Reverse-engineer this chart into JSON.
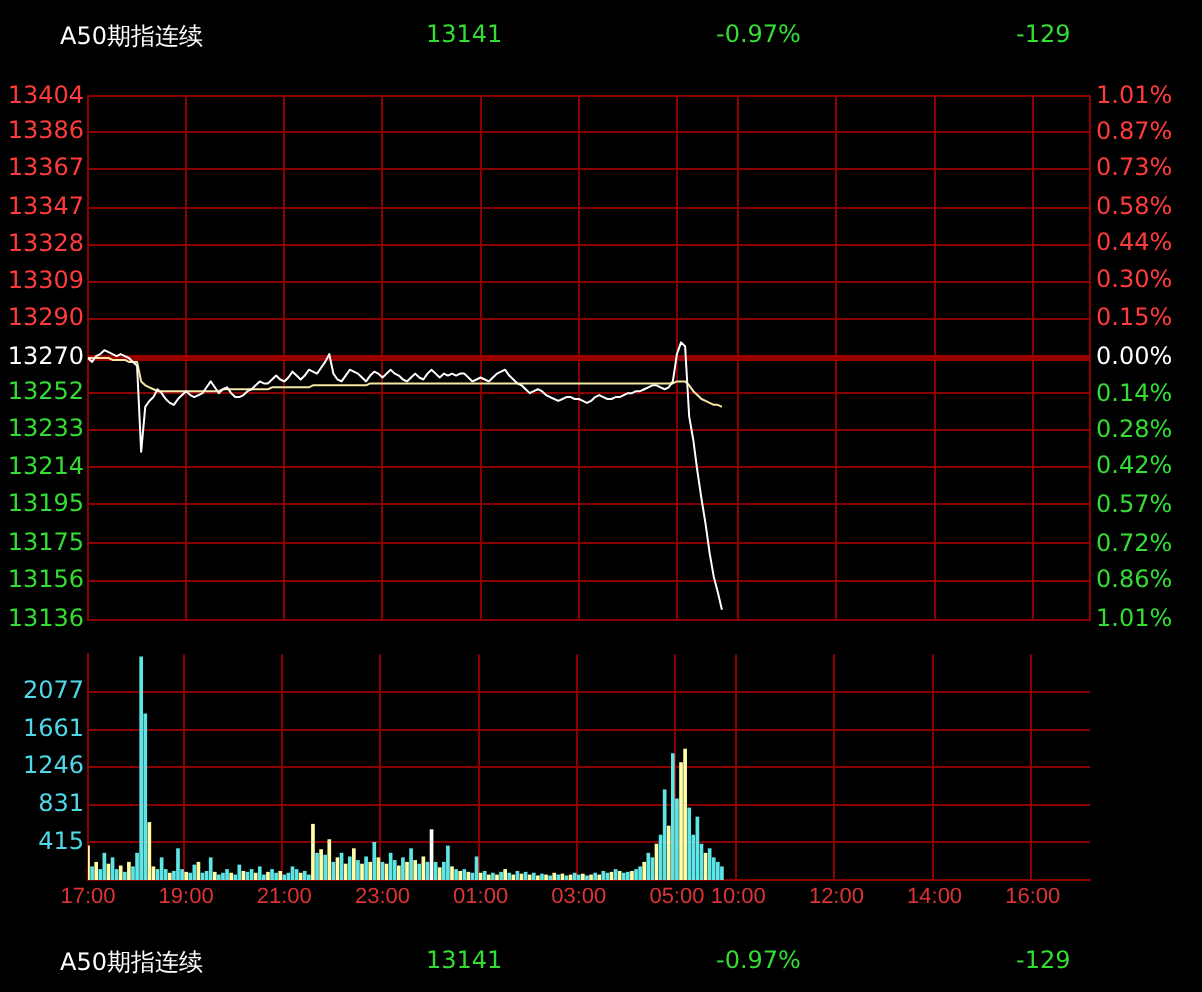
{
  "chart_data": [
    {
      "type": "line",
      "annotations": [
        "A50期指连续",
        "13141",
        "-0.97%",
        "-129"
      ],
      "categories": [
        null,
        null,
        null,
        null,
        null,
        null,
        null,
        null,
        null,
        null,
        null,
        null,
        null,
        null,
        null,
        null,
        null,
        null,
        null,
        null,
        null,
        null,
        null,
        null,
        null,
        null,
        null,
        null,
        null,
        null,
        null,
        null,
        null,
        null,
        null,
        null,
        null,
        null,
        null,
        null,
        null,
        null,
        null,
        null,
        null,
        null,
        null,
        null,
        null,
        null,
        null,
        null,
        null,
        null,
        null,
        null,
        null,
        null,
        null,
        null,
        null,
        null,
        null,
        null,
        null,
        null,
        null,
        null,
        null,
        null,
        null,
        null,
        null,
        null,
        null,
        null,
        null,
        null,
        null,
        null,
        null,
        null,
        null,
        null,
        null,
        null,
        null,
        null,
        null,
        null,
        null,
        null,
        null,
        null,
        null,
        null,
        null,
        null,
        null,
        null,
        null,
        null,
        null,
        null,
        null,
        null,
        null,
        null,
        null,
        null,
        null,
        null,
        null,
        null,
        null,
        null,
        null,
        null,
        null,
        null,
        null,
        null,
        null,
        null,
        null,
        null,
        null,
        null,
        null,
        null,
        null,
        null,
        null,
        null,
        null,
        null,
        null,
        null,
        null,
        null,
        null,
        null,
        null,
        null,
        null,
        null,
        null,
        null,
        null,
        null,
        null,
        null,
        null,
        null,
        null,
        null,
        null,
        null,
        null,
        null,
        null,
        null,
        null,
        null,
        null,
        null,
        null,
        null,
        null,
        null,
        null,
        null,
        null,
        null,
        null,
        null,
        null,
        null,
        null,
        null,
        null,
        null,
        null,
        null,
        null,
        null,
        null,
        null,
        null,
        null,
        null,
        null,
        null,
        null,
        null,
        null,
        null,
        null,
        null,
        null,
        null,
        null,
        null,
        null,
        null,
        null,
        null,
        null,
        null,
        null,
        null,
        null,
        null,
        null,
        null,
        null,
        null,
        null,
        null,
        null,
        null,
        null,
        null,
        null,
        null,
        null,
        null,
        null,
        null,
        null,
        null,
        null,
        null,
        null,
        null,
        null,
        null,
        null,
        null,
        null,
        null,
        null,
        null,
        null,
        null,
        null
      ],
      "series": [
        {
          "color": "#ffffff",
          "values": [
            13270,
            13268,
            13271,
            13272,
            13274,
            13273,
            13272,
            13271,
            13272,
            13271,
            13270,
            13268,
            13266,
            13222,
            13245,
            13248,
            13250,
            13254,
            13252,
            13249,
            13247,
            13246,
            13249,
            13251,
            13253,
            13251,
            13250,
            13251,
            13252,
            13255,
            13258,
            13255,
            13252,
            13254,
            13255,
            13252,
            13250,
            13250,
            13251,
            13253,
            13254,
            13256,
            13258,
            13257,
            13257,
            13259,
            13261,
            13259,
            13258,
            13260,
            13263,
            13261,
            13259,
            13261,
            13264,
            13263,
            13262,
            13265,
            13268,
            13272,
            13262,
            13259,
            13258,
            13261,
            13264,
            13263,
            13262,
            13260,
            13258,
            13261,
            13263,
            13262,
            13260,
            13262,
            13264,
            13262,
            13261,
            13259,
            13258,
            13260,
            13262,
            13260,
            13259,
            13262,
            13264,
            13262,
            13260,
            13262,
            13261,
            13262,
            13261,
            13262,
            13262,
            13260,
            13258,
            13259,
            13260,
            13259,
            13258,
            13260,
            13262,
            13263,
            13264,
            13261,
            13259,
            13257,
            13256,
            13254,
            13252,
            13253,
            13254,
            13253,
            13251,
            13250,
            13249,
            13248,
            13249,
            13250,
            13250,
            13249,
            13249,
            13248,
            13247,
            13248,
            13250,
            13251,
            13250,
            13249,
            13249,
            13250,
            13250,
            13251,
            13252,
            13252,
            13253,
            13253,
            13254,
            13255,
            13256,
            13256,
            13255,
            13254,
            13255,
            13258,
            13272,
            13278,
            13276,
            13240,
            13228,
            13212,
            13198,
            13185,
            13170,
            13158,
            13150,
            13141,
            null,
            null,
            null,
            null,
            null,
            null,
            null,
            null,
            null,
            null,
            null,
            null,
            null,
            null,
            null,
            null,
            null,
            null,
            null,
            null,
            null,
            null,
            null,
            null,
            null,
            null,
            null,
            null,
            null,
            null,
            null,
            null,
            null,
            null,
            null,
            null,
            null,
            null,
            null,
            null,
            null,
            null,
            null,
            null,
            null,
            null,
            null,
            null,
            null,
            null,
            null,
            null,
            null,
            null,
            null,
            null,
            null,
            null,
            null,
            null,
            null,
            null,
            null,
            null,
            null,
            null,
            null,
            null,
            null,
            null,
            null,
            null,
            null,
            null,
            null,
            null,
            null,
            null,
            null,
            null,
            null,
            null,
            null,
            null,
            null,
            null,
            null,
            null,
            null,
            null
          ]
        },
        {
          "color": "#f5e6a0",
          "values": [
            13270,
            13270,
            13270,
            13270,
            13270,
            13270,
            13269,
            13269,
            13269,
            13269,
            13268,
            13268,
            13268,
            13258,
            13256,
            13255,
            13254,
            13253,
            13253,
            13253,
            13253,
            13253,
            13253,
            13253,
            13253,
            13253,
            13253,
            13253,
            13253,
            13253,
            13253,
            13253,
            13253,
            13254,
            13254,
            13254,
            13254,
            13254,
            13254,
            13254,
            13254,
            13254,
            13254,
            13254,
            13254,
            13255,
            13255,
            13255,
            13255,
            13255,
            13255,
            13255,
            13255,
            13255,
            13255,
            13256,
            13256,
            13256,
            13256,
            13256,
            13256,
            13256,
            13256,
            13256,
            13256,
            13256,
            13256,
            13256,
            13256,
            13257,
            13257,
            13257,
            13257,
            13257,
            13257,
            13257,
            13257,
            13257,
            13257,
            13257,
            13257,
            13257,
            13257,
            13257,
            13257,
            13257,
            13257,
            13257,
            13257,
            13257,
            13257,
            13257,
            13257,
            13257,
            13257,
            13257,
            13257,
            13257,
            13257,
            13257,
            13257,
            13257,
            13257,
            13257,
            13257,
            13257,
            13257,
            13257,
            13257,
            13257,
            13257,
            13257,
            13257,
            13257,
            13257,
            13257,
            13257,
            13257,
            13257,
            13257,
            13257,
            13257,
            13257,
            13257,
            13257,
            13257,
            13257,
            13257,
            13257,
            13257,
            13257,
            13257,
            13257,
            13257,
            13257,
            13257,
            13257,
            13257,
            13257,
            13257,
            13257,
            13257,
            13257,
            13257,
            13258,
            13258,
            13258,
            13256,
            13253,
            13251,
            13249,
            13248,
            13247,
            13246,
            13246,
            13245,
            null,
            null,
            null,
            null,
            null,
            null,
            null,
            null,
            null,
            null,
            null,
            null,
            null,
            null,
            null,
            null,
            null,
            null,
            null,
            null,
            null,
            null,
            null,
            null,
            null,
            null,
            null,
            null,
            null,
            null,
            null,
            null,
            null,
            null,
            null,
            null,
            null,
            null,
            null,
            null,
            null,
            null,
            null,
            null,
            null,
            null,
            null,
            null,
            null,
            null,
            null,
            null,
            null,
            null,
            null,
            null,
            null,
            null,
            null,
            null,
            null,
            null,
            null,
            null,
            null,
            null,
            null,
            null,
            null,
            null,
            null,
            null,
            null,
            null,
            null,
            null,
            null,
            null,
            null,
            null,
            null,
            null,
            null,
            null,
            null,
            null,
            null,
            null,
            null,
            null
          ]
        }
      ],
      "ylim": [
        13136,
        13404
      ],
      "yticks": [
        13404,
        13386,
        13367,
        13347,
        13328,
        13309,
        13290,
        13270,
        13252,
        13233,
        13214,
        13195,
        13175,
        13156,
        13136
      ],
      "y2lim": [
        -1.01,
        1.01
      ],
      "y2ticks": [
        {
          "value": 1.01,
          "label": "1.01%"
        },
        {
          "value": 0.87,
          "label": "0.87%"
        },
        {
          "value": 0.73,
          "label": "0.73%"
        },
        {
          "value": 0.58,
          "label": "0.58%"
        },
        {
          "value": 0.44,
          "label": "0.44%"
        },
        {
          "value": 0.3,
          "label": "0.30%"
        },
        {
          "value": 0.15,
          "label": "0.15%"
        },
        {
          "value": 0,
          "label": "0.00%"
        },
        {
          "value": -0.14,
          "label": "0.14%"
        },
        {
          "value": -0.28,
          "label": "0.28%"
        },
        {
          "value": -0.42,
          "label": "0.42%"
        },
        {
          "value": -0.57,
          "label": "0.57%"
        },
        {
          "value": -0.72,
          "label": "0.72%"
        },
        {
          "value": -0.86,
          "label": "0.86%"
        },
        {
          "value": -1.01,
          "label": "1.01%"
        }
      ],
      "ref_lines": [
        {
          "axis": "y",
          "value": 13270,
          "color": "#990000"
        }
      ],
      "grid": true,
      "tick_labels": "y"
    },
    {
      "type": "bar",
      "annotations": [
        "A50期指连续",
        "13141",
        "-0.97%",
        "-129"
      ],
      "categories": [
        "17:00",
        null,
        null,
        null,
        null,
        null,
        null,
        null,
        null,
        null,
        null,
        null,
        null,
        null,
        null,
        null,
        null,
        null,
        null,
        null,
        null,
        null,
        null,
        null,
        "19:00",
        null,
        null,
        null,
        null,
        null,
        null,
        null,
        null,
        null,
        null,
        null,
        null,
        null,
        null,
        null,
        null,
        null,
        null,
        null,
        null,
        null,
        null,
        null,
        "21:00",
        null,
        null,
        null,
        null,
        null,
        null,
        null,
        null,
        null,
        null,
        null,
        null,
        null,
        null,
        null,
        null,
        null,
        null,
        null,
        null,
        null,
        null,
        null,
        "23:00",
        null,
        null,
        null,
        null,
        null,
        null,
        null,
        null,
        null,
        null,
        null,
        null,
        null,
        null,
        null,
        null,
        null,
        null,
        null,
        null,
        null,
        null,
        null,
        "01:00",
        null,
        null,
        null,
        null,
        null,
        null,
        null,
        null,
        null,
        null,
        null,
        null,
        null,
        null,
        null,
        null,
        null,
        null,
        null,
        null,
        null,
        null,
        null,
        "03:00",
        null,
        null,
        null,
        null,
        null,
        null,
        null,
        null,
        null,
        null,
        null,
        null,
        null,
        null,
        null,
        null,
        null,
        null,
        null,
        null,
        null,
        null,
        null,
        "05:00",
        null,
        null,
        null,
        null,
        null,
        null,
        null,
        null,
        null,
        null,
        null,
        null,
        null,
        null,
        "10:00",
        null,
        null,
        null,
        null,
        null,
        null,
        null,
        null,
        null,
        null,
        null,
        null,
        null,
        null,
        null,
        null,
        null,
        null,
        null,
        null,
        null,
        null,
        null,
        "12:00",
        null,
        null,
        null,
        null,
        null,
        null,
        null,
        null,
        null,
        null,
        null,
        null,
        null,
        null,
        null,
        null,
        null,
        null,
        null,
        null,
        null,
        null,
        null,
        "14:00",
        null,
        null,
        null,
        null,
        null,
        null,
        null,
        null,
        null,
        null,
        null,
        null,
        null,
        null,
        null,
        null,
        null,
        null,
        null,
        null,
        null,
        null,
        null,
        "16:00",
        null,
        null,
        null,
        null,
        null,
        null,
        null,
        null,
        null,
        null,
        null,
        null,
        null,
        null
      ],
      "values": [
        380,
        150,
        200,
        120,
        300,
        180,
        250,
        120,
        160,
        90,
        200,
        150,
        300,
        2470,
        1840,
        640,
        150,
        120,
        250,
        120,
        80,
        100,
        350,
        120,
        90,
        80,
        170,
        200,
        80,
        100,
        250,
        90,
        60,
        80,
        120,
        80,
        60,
        170,
        100,
        90,
        120,
        80,
        150,
        60,
        90,
        120,
        80,
        100,
        60,
        80,
        150,
        120,
        80,
        100,
        60,
        620,
        300,
        340,
        280,
        450,
        200,
        250,
        300,
        180,
        260,
        350,
        220,
        180,
        260,
        200,
        420,
        250,
        200,
        180,
        300,
        220,
        160,
        250,
        200,
        350,
        220,
        180,
        260,
        200,
        560,
        200,
        140,
        200,
        380,
        150,
        120,
        100,
        120,
        90,
        80,
        260,
        80,
        100,
        60,
        80,
        60,
        90,
        120,
        80,
        60,
        100,
        70,
        90,
        60,
        80,
        50,
        70,
        60,
        50,
        80,
        60,
        70,
        50,
        60,
        80,
        60,
        70,
        50,
        60,
        80,
        60,
        100,
        80,
        90,
        120,
        100,
        80,
        90,
        100,
        120,
        150,
        200,
        300,
        250,
        400,
        500,
        1000,
        600,
        1400,
        900,
        1300,
        1450,
        800,
        500,
        700,
        400,
        300,
        350,
        250,
        200,
        150,
        null,
        null,
        null,
        null,
        null,
        null,
        null,
        null,
        null,
        null,
        null,
        null,
        null,
        null,
        null,
        null,
        null,
        null,
        null,
        null,
        null,
        null,
        null,
        null,
        null,
        null,
        null,
        null,
        null,
        null,
        null,
        null,
        null,
        null,
        null,
        null,
        null,
        null,
        null,
        null,
        null,
        null,
        null,
        null,
        null,
        null,
        null,
        null,
        null,
        null,
        null,
        null,
        null,
        null,
        null,
        null,
        null,
        null,
        null,
        null,
        null,
        null,
        null,
        null,
        null,
        null,
        null,
        null,
        null,
        null,
        null,
        null,
        null,
        null,
        null,
        null,
        null,
        null,
        null,
        null,
        null,
        null,
        null,
        null,
        null,
        null,
        null,
        null,
        null,
        null
      ],
      "colors": [
        "#ffffa8",
        "#5ee6e6",
        "#ffffa8",
        "#5ee6e6",
        "#5ee6e6",
        "#ffffa8",
        "#5ee6e6",
        "#5ee6e6",
        "#ffffa8",
        "#5ee6e6",
        "#ffffa8",
        "#5ee6e6",
        "#5ee6e6",
        "#5ee6e6",
        "#5ee6e6",
        "#ffffa8",
        "#ffffa8",
        "#5ee6e6",
        "#5ee6e6",
        "#5ee6e6",
        "#ffffa8",
        "#5ee6e6",
        "#5ee6e6",
        "#5ee6e6",
        "#ffffa8",
        "#5ee6e6",
        "#5ee6e6",
        "#ffffa8",
        "#5ee6e6",
        "#5ee6e6",
        "#5ee6e6",
        "#ffffa8",
        "#5ee6e6",
        "#5ee6e6",
        "#5ee6e6",
        "#ffffa8",
        "#5ee6e6",
        "#5ee6e6",
        "#ffffa8",
        "#5ee6e6",
        "#5ee6e6",
        "#ffffa8",
        "#5ee6e6",
        "#5ee6e6",
        "#ffffa8",
        "#5ee6e6",
        "#5ee6e6",
        "#ffffa8",
        "#5ee6e6",
        "#5ee6e6",
        "#5ee6e6",
        "#5ee6e6",
        "#ffffa8",
        "#5ee6e6",
        "#5ee6e6",
        "#ffffa8",
        "#5ee6e6",
        "#ffffa8",
        "#5ee6e6",
        "#ffffa8",
        "#5ee6e6",
        "#ffffa8",
        "#5ee6e6",
        "#ffffa8",
        "#5ee6e6",
        "#ffffa8",
        "#5ee6e6",
        "#ffffa8",
        "#5ee6e6",
        "#ffffa8",
        "#5ee6e6",
        "#ffffa8",
        "#5ee6e6",
        "#ffffa8",
        "#5ee6e6",
        "#5ee6e6",
        "#ffffa8",
        "#5ee6e6",
        "#ffffa8",
        "#5ee6e6",
        "#ffffa8",
        "#5ee6e6",
        "#ffffa8",
        "#5ee6e6",
        "#ffffff",
        "#5ee6e6",
        "#ffffa8",
        "#5ee6e6",
        "#5ee6e6",
        "#ffffa8",
        "#5ee6e6",
        "#ffffa8",
        "#5ee6e6",
        "#ffffa8",
        "#5ee6e6",
        "#5ee6e6",
        "#ffffa8",
        "#5ee6e6",
        "#ffffa8",
        "#5ee6e6",
        "#ffffa8",
        "#5ee6e6",
        "#ffffa8",
        "#5ee6e6",
        "#ffffa8",
        "#5ee6e6",
        "#ffffa8",
        "#5ee6e6",
        "#ffffa8",
        "#5ee6e6",
        "#ffffa8",
        "#5ee6e6",
        "#ffffa8",
        "#5ee6e6",
        "#ffffa8",
        "#5ee6e6",
        "#ffffa8",
        "#5ee6e6",
        "#ffffa8",
        "#5ee6e6",
        "#5ee6e6",
        "#ffffa8",
        "#5ee6e6",
        "#ffffa8",
        "#5ee6e6",
        "#ffffa8",
        "#5ee6e6",
        "#5ee6e6",
        "#ffffa8",
        "#5ee6e6",
        "#ffffa8",
        "#5ee6e6",
        "#5ee6e6",
        "#ffffa8",
        "#5ee6e6",
        "#5ee6e6",
        "#ffffa8",
        "#5ee6e6",
        "#5ee6e6",
        "#ffffa8",
        "#5ee6e6",
        "#5ee6e6",
        "#ffffa8",
        "#5ee6e6",
        "#5ee6e6",
        "#ffffa8",
        "#ffffa8",
        "#5ee6e6",
        "#5ee6e6",
        "#5ee6e6",
        "#5ee6e6",
        "#ffffa8",
        "#5ee6e6",
        "#5ee6e6",
        "#5ee6e6",
        "#5ee6e6",
        null,
        null,
        null,
        null,
        null,
        null,
        null,
        null,
        null,
        null,
        null,
        null,
        null,
        null,
        null,
        null,
        null,
        null,
        null,
        null,
        null,
        null,
        null,
        null,
        null,
        null,
        null,
        null,
        null,
        null,
        null,
        null,
        null,
        null,
        null,
        null,
        null,
        null,
        null,
        null,
        null,
        null,
        null,
        null,
        null,
        null,
        null,
        null,
        null,
        null,
        null,
        null,
        null,
        null,
        null,
        null,
        null,
        null,
        null,
        null,
        null,
        null,
        null,
        null,
        null,
        null,
        null,
        null,
        null,
        null,
        null,
        null,
        null,
        null,
        null,
        null,
        null,
        null,
        null,
        null,
        null,
        null,
        null,
        null,
        null,
        null,
        null,
        null,
        null,
        null
      ],
      "ylim": [
        0,
        2492
      ],
      "yticks": [
        415,
        831,
        1246,
        1661,
        2077
      ],
      "grid": true
    }
  ]
}
